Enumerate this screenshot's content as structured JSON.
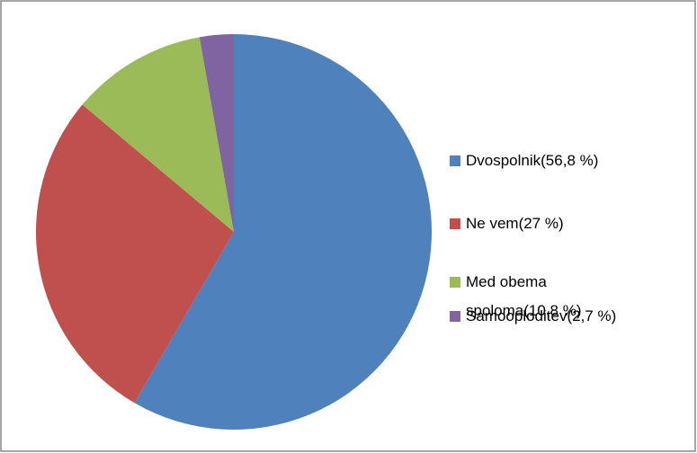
{
  "chart_data": {
    "type": "pie",
    "categories": [
      "Dvospolnik(56,8 %)",
      "Ne vem(27 %)",
      "Med obema spoloma(10,8 %)",
      "Samooploditev(2,7 %)"
    ],
    "values": [
      56.8,
      27,
      10.8,
      2.7
    ],
    "colors": [
      "#4F81BD",
      "#C0504D",
      "#9BBB59",
      "#8064A2"
    ],
    "legend": "right"
  }
}
